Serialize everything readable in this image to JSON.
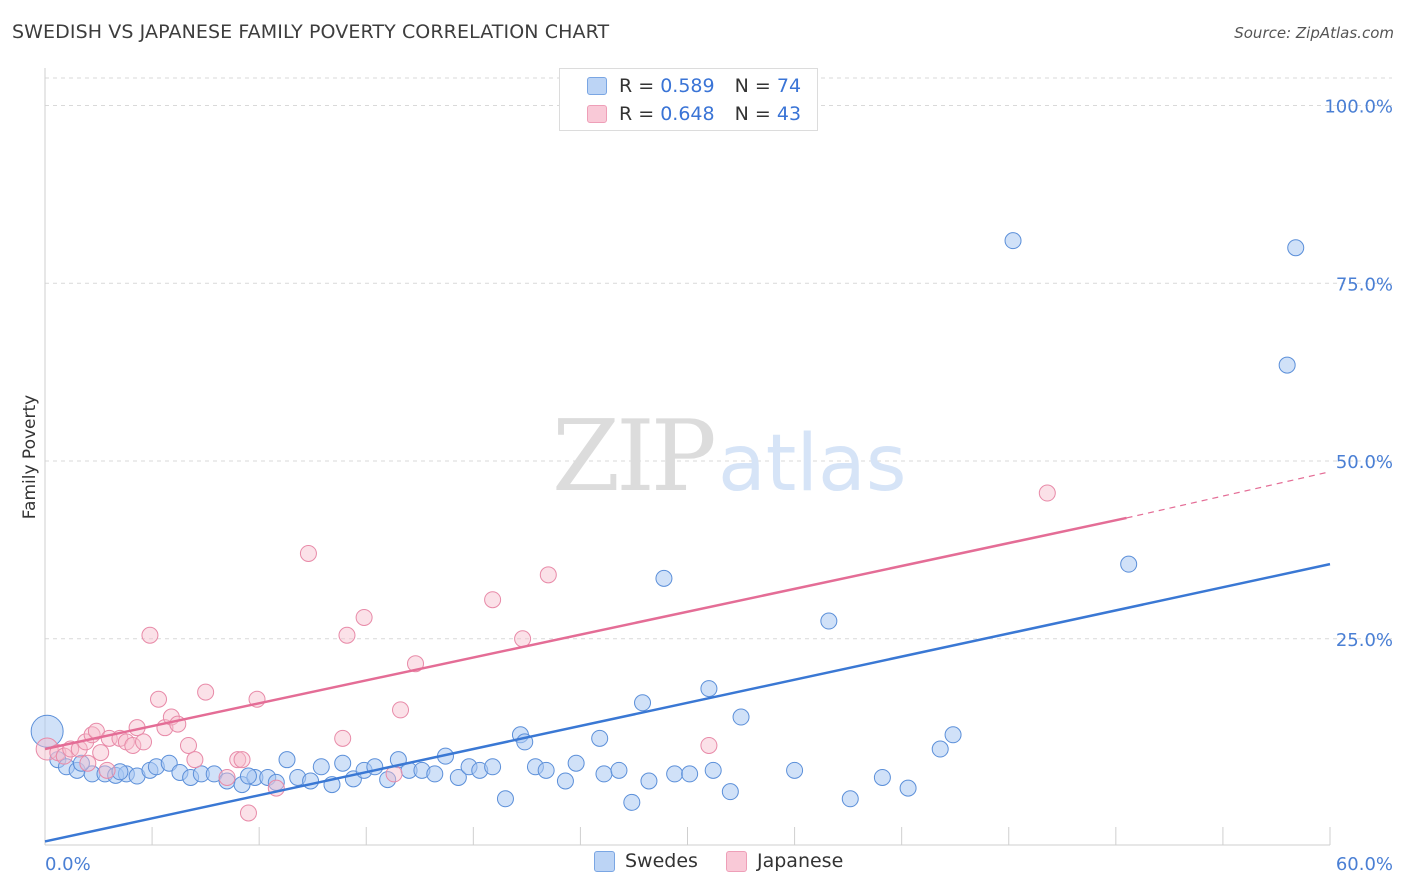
{
  "title": "SWEDISH VS JAPANESE FAMILY POVERTY CORRELATION CHART",
  "source": "Source: ZipAtlas.com",
  "watermark": {
    "zip": "ZIP",
    "atlas": "atlas"
  },
  "legend": {
    "rows": [
      {
        "r_label": "R =",
        "r_value": "0.589",
        "n_label": "N =",
        "n_value": "74"
      },
      {
        "r_label": "R =",
        "r_value": "0.648",
        "n_label": "N =",
        "n_value": "43"
      }
    ]
  },
  "colors": {
    "swedes_fill": "#a9c8f2",
    "swedes_stroke": "#5b8fd9",
    "swedes_line": "#3a78d4",
    "japanese_fill": "#f6bccd",
    "japanese_stroke": "#e88aa8",
    "japanese_line": "#e46d96",
    "grid": "#d9d9d9",
    "tick_text": "#4a7fd4"
  },
  "chart_data": {
    "type": "scatter",
    "title": "SWEDISH VS JAPANESE FAMILY POVERTY CORRELATION CHART",
    "xlabel": "",
    "ylabel": "Family Poverty",
    "xlim": [
      0,
      60
    ],
    "ylim": [
      -4,
      105
    ],
    "x_tick_labels": [
      "0.0%",
      "60.0%"
    ],
    "y_ticks": [
      25,
      50,
      75,
      100
    ],
    "y_tick_labels": [
      "25.0%",
      "50.0%",
      "75.0%",
      "100.0%"
    ],
    "legend_position": "top-center",
    "bottom_legend": [
      "Swedes",
      "Japanese"
    ],
    "series": [
      {
        "name": "Swedes",
        "r": 0.589,
        "n": 74,
        "trend": {
          "x0": 0,
          "y0": -3.5,
          "x1": 60,
          "y1": 35.5
        },
        "points": [
          [
            0.1,
            12.0
          ],
          [
            0.6,
            8.0
          ],
          [
            1.0,
            7.0
          ],
          [
            1.5,
            6.5
          ],
          [
            2.2,
            6.0
          ],
          [
            2.8,
            6.0
          ],
          [
            3.3,
            5.8
          ],
          [
            3.8,
            6.0
          ],
          [
            4.3,
            5.7
          ],
          [
            4.9,
            6.5
          ],
          [
            5.2,
            7.0
          ],
          [
            5.8,
            7.5
          ],
          [
            6.3,
            6.2
          ],
          [
            6.8,
            5.5
          ],
          [
            7.3,
            6.0
          ],
          [
            7.9,
            6.0
          ],
          [
            8.5,
            5.0
          ],
          [
            9.2,
            4.5
          ],
          [
            9.8,
            5.5
          ],
          [
            10.4,
            5.5
          ],
          [
            10.8,
            4.8
          ],
          [
            11.3,
            8.0
          ],
          [
            11.8,
            5.5
          ],
          [
            12.4,
            5.0
          ],
          [
            12.9,
            7.0
          ],
          [
            13.4,
            4.5
          ],
          [
            13.9,
            7.5
          ],
          [
            14.4,
            5.3
          ],
          [
            14.9,
            6.5
          ],
          [
            15.4,
            7.0
          ],
          [
            16.0,
            5.2
          ],
          [
            16.5,
            8.0
          ],
          [
            17.0,
            6.5
          ],
          [
            17.6,
            6.5
          ],
          [
            18.2,
            6.0
          ],
          [
            18.7,
            8.5
          ],
          [
            19.3,
            5.5
          ],
          [
            19.8,
            7.0
          ],
          [
            20.3,
            6.5
          ],
          [
            20.9,
            7.0
          ],
          [
            21.5,
            2.5
          ],
          [
            22.2,
            11.5
          ],
          [
            22.4,
            10.5
          ],
          [
            22.9,
            7.0
          ],
          [
            23.4,
            6.5
          ],
          [
            24.3,
            5.0
          ],
          [
            24.8,
            7.5
          ],
          [
            25.9,
            11.0
          ],
          [
            26.1,
            6.0
          ],
          [
            26.8,
            6.5
          ],
          [
            27.4,
            2.0
          ],
          [
            27.9,
            16.0
          ],
          [
            28.2,
            5.0
          ],
          [
            28.9,
            33.5
          ],
          [
            29.4,
            6.0
          ],
          [
            30.1,
            6.0
          ],
          [
            31.0,
            18.0
          ],
          [
            31.2,
            6.5
          ],
          [
            32.0,
            3.5
          ],
          [
            32.5,
            14.0
          ],
          [
            35.0,
            6.5
          ],
          [
            36.6,
            27.5
          ],
          [
            37.6,
            2.5
          ],
          [
            39.1,
            5.5
          ],
          [
            40.3,
            4.0
          ],
          [
            41.8,
            9.5
          ],
          [
            42.4,
            11.5
          ],
          [
            45.2,
            81.0
          ],
          [
            50.6,
            35.5
          ],
          [
            58.0,
            63.5
          ],
          [
            58.4,
            80.0
          ],
          [
            1.7,
            7.5
          ],
          [
            3.5,
            6.3
          ],
          [
            9.5,
            5.7
          ]
        ]
      },
      {
        "name": "Japanese",
        "r": 0.648,
        "n": 43,
        "trend": {
          "x0": 0,
          "y0": 9.5,
          "x1": 50.5,
          "y1": 42.0,
          "dash_x1": 60,
          "dash_y1": 48.5
        },
        "points": [
          [
            0.1,
            9.5
          ],
          [
            0.6,
            9.0
          ],
          [
            0.9,
            8.5
          ],
          [
            1.2,
            9.5
          ],
          [
            1.6,
            9.5
          ],
          [
            1.9,
            10.5
          ],
          [
            2.2,
            11.5
          ],
          [
            2.4,
            12.0
          ],
          [
            2.6,
            9.0
          ],
          [
            2.9,
            6.5
          ],
          [
            3.0,
            11.0
          ],
          [
            3.5,
            11.0
          ],
          [
            3.8,
            10.5
          ],
          [
            4.1,
            10.0
          ],
          [
            4.3,
            12.5
          ],
          [
            4.6,
            10.5
          ],
          [
            4.9,
            25.5
          ],
          [
            5.3,
            16.5
          ],
          [
            5.6,
            12.5
          ],
          [
            5.9,
            14.0
          ],
          [
            6.2,
            13.0
          ],
          [
            6.7,
            10.0
          ],
          [
            7.0,
            8.0
          ],
          [
            7.5,
            17.5
          ],
          [
            8.5,
            5.5
          ],
          [
            9.0,
            8.0
          ],
          [
            9.2,
            8.0
          ],
          [
            9.5,
            0.5
          ],
          [
            9.9,
            16.5
          ],
          [
            10.8,
            4.0
          ],
          [
            12.3,
            37.0
          ],
          [
            13.9,
            11.0
          ],
          [
            14.1,
            25.5
          ],
          [
            14.9,
            28.0
          ],
          [
            16.3,
            6.0
          ],
          [
            16.6,
            15.0
          ],
          [
            17.3,
            21.5
          ],
          [
            20.9,
            30.5
          ],
          [
            22.3,
            25.0
          ],
          [
            23.5,
            34.0
          ],
          [
            31.0,
            10.0
          ],
          [
            46.8,
            45.5
          ],
          [
            2.0,
            7.5
          ]
        ]
      }
    ]
  }
}
